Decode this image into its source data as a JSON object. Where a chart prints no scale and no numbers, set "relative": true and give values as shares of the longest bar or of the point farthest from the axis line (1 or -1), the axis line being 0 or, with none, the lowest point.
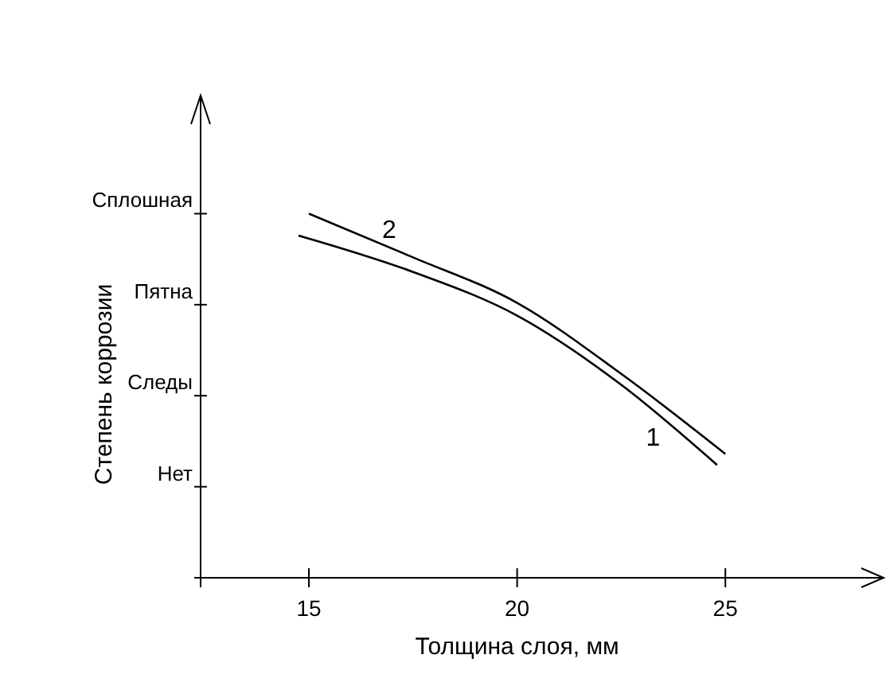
{
  "chart_data": {
    "type": "line",
    "xlabel": "Толщина слоя, мм",
    "ylabel": "Степень коррозии",
    "xlim": [
      12.4,
      28.8
    ],
    "xticks": [
      15,
      20,
      25
    ],
    "relative": true,
    "annotations": [
      "Нет",
      "Следы",
      "Пятна",
      "Сплошная"
    ],
    "grid": false,
    "marker": "none",
    "line_style": "solid",
    "series": [
      {
        "name": "1",
        "color": "#000000",
        "x": [
          14.75,
          17.5,
          20,
          22.5,
          24.8
        ],
        "values": [
          0.94,
          0.84,
          0.72,
          0.53,
          0.31
        ]
      },
      {
        "name": "2",
        "color": "#000000",
        "x": [
          15,
          17.5,
          20,
          22.5,
          25
        ],
        "values": [
          1.0,
          0.88,
          0.755,
          0.56,
          0.34
        ]
      }
    ]
  }
}
